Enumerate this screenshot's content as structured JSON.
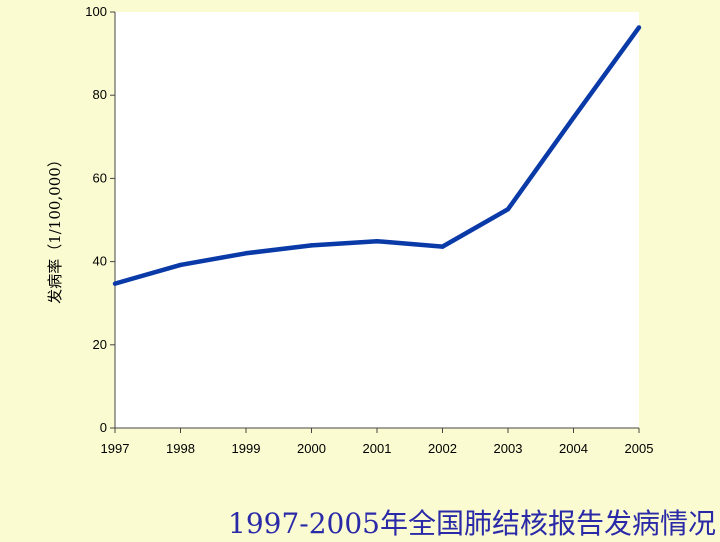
{
  "caption": "1997-2005年全国肺结核报告发病情况",
  "colors": {
    "background": "#fbfbd2",
    "plot_area": "#ffffff",
    "line": "#0a3aa8",
    "caption": "#2a2aa8"
  },
  "chart_data": {
    "type": "line",
    "title": "",
    "xlabel": "",
    "ylabel": "发病率（1/100,000）",
    "ylim": [
      0,
      100
    ],
    "yticks": [
      0,
      20,
      40,
      60,
      80,
      100
    ],
    "categories": [
      "1997",
      "1998",
      "1999",
      "2000",
      "2001",
      "2002",
      "2003",
      "2004",
      "2005"
    ],
    "series": [
      {
        "values": [
          34.7,
          39.2,
          42.0,
          43.9,
          44.9,
          43.6,
          52.6,
          74.6,
          96.3
        ]
      }
    ],
    "grid": false
  }
}
